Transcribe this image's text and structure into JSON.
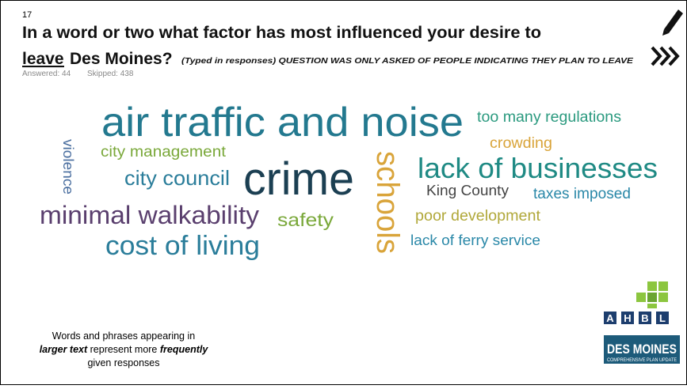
{
  "slide_number": "17",
  "question": {
    "line1": "In a word or two what factor has most influenced your desire to",
    "emphasis": "leave",
    "line2_rest": "Des Moines?",
    "note": "(Typed in responses) QUESTION WAS ONLY ASKED OF PEOPLE INDICATING THEY PLAN TO LEAVE"
  },
  "stats": {
    "answered": "Answered: 44",
    "skipped": "Skipped: 438"
  },
  "words": [
    "air traffic and noise",
    "too many regulations",
    "crowding",
    "city management",
    "violence",
    "city council",
    "crime",
    "schools",
    "lack of businesses",
    "King County",
    "taxes imposed",
    "minimal walkability",
    "safety",
    "poor development",
    "cost of living",
    "lack of ferry service"
  ],
  "footnote": {
    "part1": "Words and phrases appearing in",
    "part2": "larger text",
    "part3": "represent more",
    "part4": "frequently",
    "part5": "given responses"
  },
  "logos": {
    "ahbl_letters": [
      "A",
      "H",
      "B",
      "L"
    ],
    "city": "DES MOINES",
    "tagline": "COMPREHENSIVE PLAN UPDATE"
  }
}
